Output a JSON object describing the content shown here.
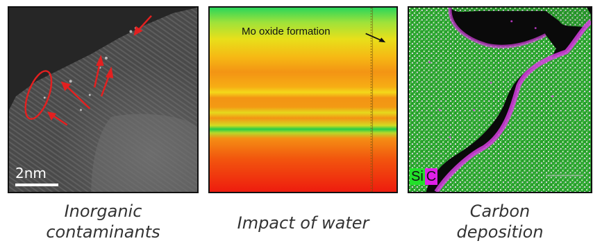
{
  "panels": [
    {
      "caption_lines": [
        "Inorganic",
        "contaminants"
      ],
      "scale_bar": "2nm",
      "marker_color": "#e32020"
    },
    {
      "caption": "Impact of water",
      "annotation": "Mo oxide formation"
    },
    {
      "caption_lines": [
        "Carbon",
        "deposition"
      ],
      "legend": [
        {
          "label": "Si",
          "color": "#22e02a"
        },
        {
          "label": "C",
          "color": "#e020e8"
        }
      ]
    }
  ]
}
